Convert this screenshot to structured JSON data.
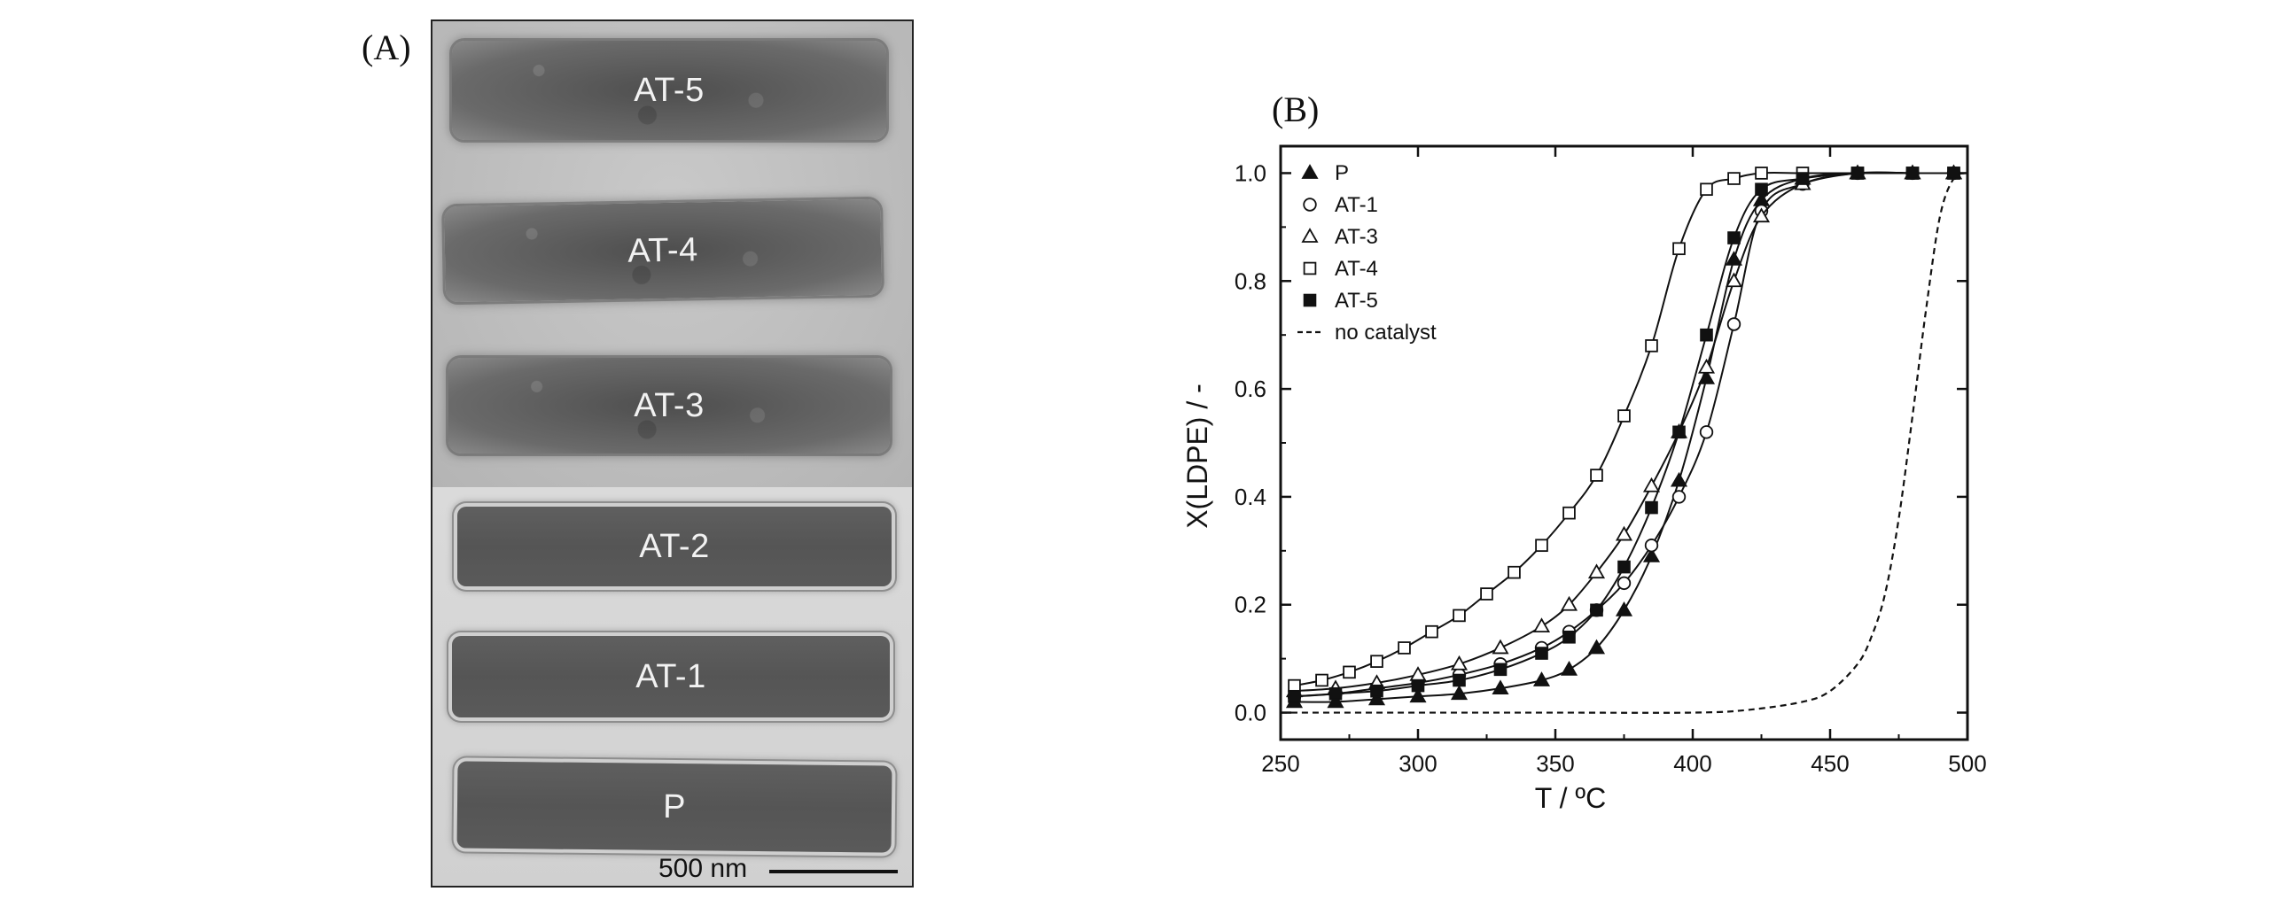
{
  "panels": {
    "a_label": "(A)",
    "b_label": "(B)"
  },
  "tem": {
    "crystals": [
      "AT-5",
      "AT-4",
      "AT-3",
      "AT-2",
      "AT-1",
      "P"
    ],
    "scale_text": "500 nm"
  },
  "chart_data": {
    "type": "line",
    "xlabel": "T / ºC",
    "ylabel": "X(LDPE) / -",
    "xlim": [
      250,
      500
    ],
    "ylim": [
      -0.05,
      1.05
    ],
    "xticks": [
      "250",
      "300",
      "350",
      "400",
      "450",
      "500"
    ],
    "yticks": [
      "0.0",
      "0.2",
      "0.4",
      "0.6",
      "0.8",
      "1.0"
    ],
    "legend_position": "top-left",
    "series": [
      {
        "name": "P",
        "marker": "triangle-filled",
        "x": [
          255,
          270,
          285,
          300,
          315,
          330,
          345,
          355,
          365,
          375,
          385,
          395,
          405,
          415,
          425,
          440,
          460,
          480,
          495
        ],
        "y": [
          0.02,
          0.02,
          0.025,
          0.03,
          0.035,
          0.045,
          0.06,
          0.08,
          0.12,
          0.19,
          0.29,
          0.43,
          0.62,
          0.84,
          0.95,
          0.99,
          1.0,
          1.0,
          1.0
        ]
      },
      {
        "name": "AT-1",
        "marker": "circle-open",
        "x": [
          255,
          270,
          285,
          300,
          315,
          330,
          345,
          355,
          365,
          375,
          385,
          395,
          405,
          415,
          425,
          440,
          460,
          480,
          495
        ],
        "y": [
          0.03,
          0.035,
          0.045,
          0.055,
          0.07,
          0.09,
          0.12,
          0.15,
          0.19,
          0.24,
          0.31,
          0.4,
          0.52,
          0.72,
          0.93,
          0.98,
          1.0,
          1.0,
          1.0
        ]
      },
      {
        "name": "AT-3",
        "marker": "triangle-open",
        "x": [
          255,
          270,
          285,
          300,
          315,
          330,
          345,
          355,
          365,
          375,
          385,
          395,
          405,
          415,
          425,
          440,
          460,
          480,
          495
        ],
        "y": [
          0.04,
          0.045,
          0.055,
          0.07,
          0.09,
          0.12,
          0.16,
          0.2,
          0.26,
          0.33,
          0.42,
          0.52,
          0.64,
          0.8,
          0.92,
          0.98,
          1.0,
          1.0,
          1.0
        ]
      },
      {
        "name": "AT-4",
        "marker": "square-open",
        "x": [
          255,
          265,
          275,
          285,
          295,
          305,
          315,
          325,
          335,
          345,
          355,
          365,
          375,
          385,
          395,
          405,
          415,
          425,
          440,
          460,
          480,
          495
        ],
        "y": [
          0.05,
          0.06,
          0.075,
          0.095,
          0.12,
          0.15,
          0.18,
          0.22,
          0.26,
          0.31,
          0.37,
          0.44,
          0.55,
          0.68,
          0.86,
          0.97,
          0.99,
          1.0,
          1.0,
          1.0,
          1.0,
          1.0
        ]
      },
      {
        "name": "AT-5",
        "marker": "square-filled",
        "x": [
          255,
          270,
          285,
          300,
          315,
          330,
          345,
          355,
          365,
          375,
          385,
          395,
          405,
          415,
          425,
          440,
          460,
          480,
          495
        ],
        "y": [
          0.03,
          0.035,
          0.04,
          0.05,
          0.06,
          0.08,
          0.11,
          0.14,
          0.19,
          0.27,
          0.38,
          0.52,
          0.7,
          0.88,
          0.97,
          0.99,
          1.0,
          1.0,
          1.0
        ]
      },
      {
        "name": "no catalyst",
        "marker": "dashed",
        "x": [
          250,
          300,
          350,
          400,
          420,
          440,
          450,
          460,
          465,
          470,
          475,
          480,
          485,
          490,
          495,
          500
        ],
        "y": [
          0.0,
          0.0,
          0.0,
          0.0,
          0.005,
          0.02,
          0.04,
          0.09,
          0.14,
          0.22,
          0.36,
          0.55,
          0.75,
          0.92,
          0.99,
          1.0
        ]
      }
    ]
  }
}
